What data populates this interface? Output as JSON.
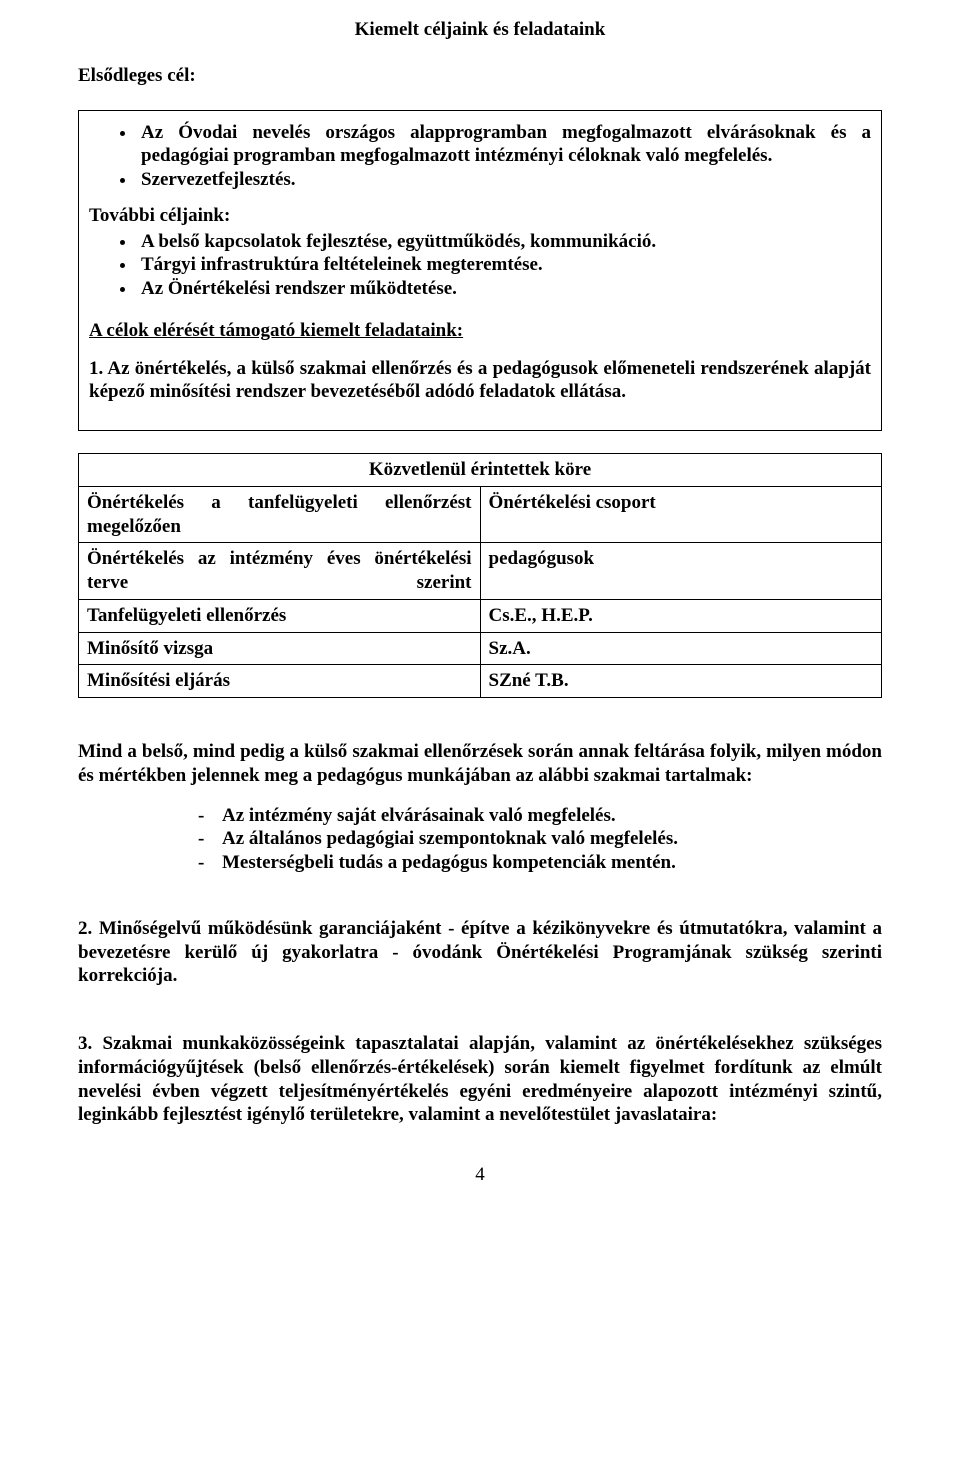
{
  "title": "Kiemelt céljaink és feladataink",
  "primary_goal_label": "Elsődleges cél:",
  "primary_goals": [
    "Az Óvodai nevelés országos alapprogramban megfogalmazott elvárásoknak és a pedagógiai programban megfogalmazott intézményi céloknak való megfelelés.",
    "Szervezetfejlesztés."
  ],
  "further_goals_label": "További céljaink:",
  "further_goals": [
    "A belső kapcsolatok fejlesztése, együttműködés, kommunikáció.",
    "Tárgyi infrastruktúra feltételeinek megteremtése.",
    "Az Önértékelési rendszer működtetése."
  ],
  "tasks_heading": "A célok elérését támogató kiemelt feladataink:",
  "task1": "1. Az önértékelés, a külső szakmai ellenőrzés és a pedagógusok előmeneteli rendszerének alapját képező minősítési rendszer bevezetéséből adódó feladatok ellátása.",
  "table_header": "Közvetlenül érintettek köre",
  "rows": [
    {
      "left": "Önértékelés a tanfelügyeleti ellenőrzést megelőzően",
      "right": "Önértékelési csoport",
      "spread": true
    },
    {
      "left": "Önértékelés az intézmény éves önértékelési terve szerint",
      "right": "pedagógusok",
      "spread": true
    },
    {
      "left": "Tanfelügyeleti ellenőrzés",
      "right": "Cs.E., H.E.P.",
      "spread": false
    },
    {
      "left": "Minősítő vizsga",
      "right": "Sz.A.",
      "spread": false
    },
    {
      "left": "Minősítési eljárás",
      "right": "SZné T.B.",
      "spread": false
    }
  ],
  "para_both": "Mind a belső, mind pedig a külső szakmai ellenőrzések során annak feltárása folyik, milyen módon és mértékben jelennek meg a pedagógus munkájában az alábbi szakmai tartalmak:",
  "dash_items": [
    "Az intézmény saját elvárásainak való megfelelés.",
    "Az általános pedagógiai szempontoknak való megfelelés.",
    "Mesterségbeli tudás a pedagógus kompetenciák mentén."
  ],
  "task2": "2. Minőségelvű működésünk garanciájaként - építve a kézikönyvekre és útmutatókra, valamint a bevezetésre kerülő új gyakorlatra - óvodánk Önértékelési Programjának szükség szerinti korrekciója.",
  "task3": "3. Szakmai munkaközösségeink tapasztalatai alapján, valamint az önértékelésekhez szükséges információgyűjtések (belső ellenőrzés-értékelések) során kiemelt figyelmet fordítunk az elmúlt nevelési évben végzett teljesítményértékelés egyéni eredményeire alapozott intézményi szintű, leginkább fejlesztést igénylő területekre, valamint a nevelőtestület javaslataira:",
  "page_number": "4"
}
